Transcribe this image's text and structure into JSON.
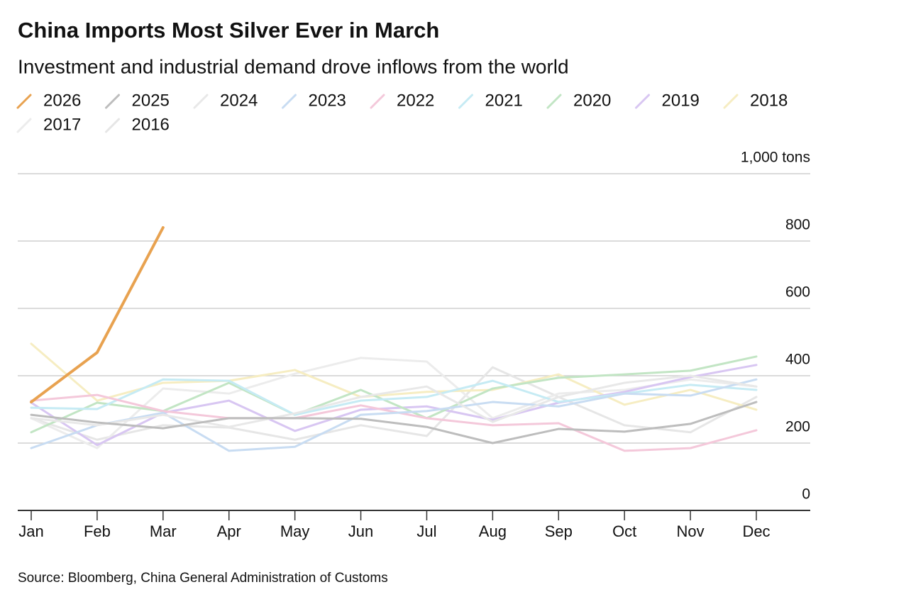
{
  "chart_data": {
    "type": "line",
    "title": "China Imports Most Silver Ever in March",
    "subtitle": "Investment and industrial demand drove inflows from the world",
    "source": "Source: Bloomberg, China General Administration of Customs",
    "categories": [
      "Jan",
      "Feb",
      "Mar",
      "Apr",
      "May",
      "Jun",
      "Jul",
      "Aug",
      "Sep",
      "Oct",
      "Nov",
      "Dec"
    ],
    "ylim": [
      0,
      1000
    ],
    "yticks": [
      0,
      200,
      400,
      600,
      800,
      {
        "value": 1000,
        "label": "1,000 tons"
      }
    ],
    "grid": true,
    "series": [
      {
        "name": "2026",
        "color": "#e8a250",
        "values": [
          322,
          469,
          840,
          null,
          null,
          null,
          null,
          null,
          null,
          null,
          null,
          null
        ]
      },
      {
        "name": "2025",
        "color": "#bdbdbd",
        "values": [
          284,
          261,
          244,
          274,
          274,
          272,
          248,
          200,
          242,
          234,
          257,
          322
        ]
      },
      {
        "name": "2024",
        "color": "#e8e8e8",
        "values": [
          274,
          253,
          284,
          248,
          288,
          337,
          368,
          263,
          337,
          379,
          400,
          368
        ]
      },
      {
        "name": "2023",
        "color": "#c8dcf2",
        "values": [
          185,
          253,
          290,
          177,
          189,
          284,
          295,
          322,
          309,
          347,
          341,
          389
        ]
      },
      {
        "name": "2022",
        "color": "#f4c8da",
        "values": [
          326,
          343,
          295,
          274,
          274,
          312,
          274,
          253,
          259,
          177,
          185,
          238
        ]
      },
      {
        "name": "2021",
        "color": "#c6ebf4",
        "values": [
          305,
          301,
          389,
          385,
          284,
          326,
          337,
          385,
          322,
          347,
          373,
          358
        ]
      },
      {
        "name": "2020",
        "color": "#c2e5c4",
        "values": [
          232,
          320,
          295,
          379,
          284,
          358,
          274,
          362,
          394,
          404,
          415,
          457
        ]
      },
      {
        "name": "2019",
        "color": "#d8c6f2",
        "values": [
          320,
          194,
          290,
          326,
          236,
          299,
          309,
          269,
          320,
          352,
          396,
          432
        ]
      },
      {
        "name": "2018",
        "color": "#f6edc2",
        "values": [
          495,
          326,
          379,
          385,
          417,
          337,
          352,
          358,
          404,
          314,
          358,
          299
        ]
      },
      {
        "name": "2017",
        "color": "#ececec",
        "values": [
          274,
          185,
          362,
          347,
          406,
          453,
          442,
          274,
          347,
          358,
          389,
          368
        ]
      },
      {
        "name": "2016",
        "color": "#e6e6e6",
        "values": [
          274,
          210,
          253,
          246,
          210,
          253,
          221,
          425,
          337,
          253,
          232,
          337
        ]
      }
    ]
  }
}
